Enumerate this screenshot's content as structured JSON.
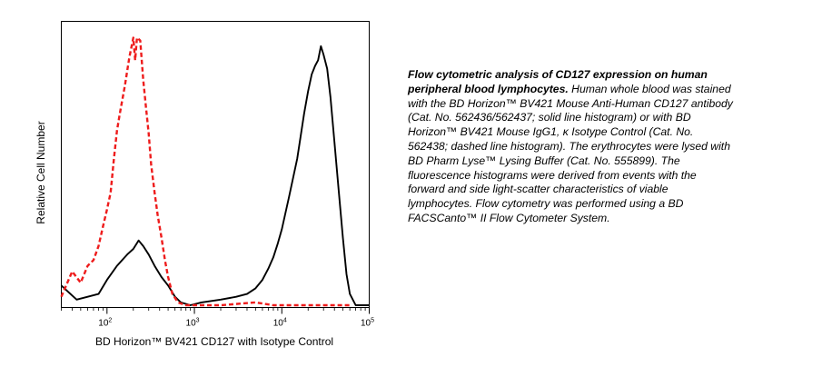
{
  "chart_data": {
    "type": "line",
    "xscale": "log",
    "xlim": [
      30,
      100000
    ],
    "ylim": [
      0,
      1.0
    ],
    "xlabel": "BD Horizon™ BV421 CD127 with Isotype Control",
    "ylabel": "Relative Cell Number",
    "xticks": [
      {
        "value": 100,
        "base": "10",
        "exp": "2"
      },
      {
        "value": 1000,
        "base": "10",
        "exp": "3"
      },
      {
        "value": 10000,
        "base": "10",
        "exp": "4"
      },
      {
        "value": 100000,
        "base": "10",
        "exp": "5"
      }
    ],
    "grid": false,
    "series": [
      {
        "style": "solid",
        "color": "#000000",
        "x": [
          30,
          45,
          60,
          80,
          100,
          130,
          170,
          200,
          230,
          260,
          300,
          350,
          420,
          500,
          600,
          700,
          900,
          1200,
          2000,
          3000,
          4000,
          5000,
          6000,
          7000,
          8000,
          9000,
          10000,
          12000,
          15000,
          18000,
          20000,
          22000,
          24000,
          26000,
          28000,
          30000,
          33000,
          36000,
          40000,
          45000,
          50000,
          55000,
          60000,
          70000,
          90000,
          100000
        ],
        "y": [
          0.07,
          0.02,
          0.03,
          0.04,
          0.09,
          0.14,
          0.18,
          0.2,
          0.23,
          0.21,
          0.18,
          0.14,
          0.1,
          0.07,
          0.03,
          0.01,
          0.0,
          0.01,
          0.02,
          0.03,
          0.04,
          0.06,
          0.09,
          0.13,
          0.17,
          0.22,
          0.27,
          0.38,
          0.52,
          0.68,
          0.76,
          0.82,
          0.85,
          0.87,
          0.92,
          0.89,
          0.84,
          0.74,
          0.58,
          0.4,
          0.24,
          0.11,
          0.04,
          0.0,
          0.0,
          0.0
        ]
      },
      {
        "style": "dashed",
        "color": "#ee1c1c",
        "x": [
          30,
          40,
          50,
          60,
          70,
          80,
          90,
          100,
          110,
          120,
          130,
          140,
          160,
          180,
          200,
          210,
          220,
          240,
          260,
          280,
          300,
          320,
          350,
          380,
          420,
          460,
          500,
          560,
          650,
          800,
          1000,
          2000,
          5000,
          8000,
          20000,
          30000,
          60000
        ],
        "y": [
          0.03,
          0.12,
          0.08,
          0.14,
          0.16,
          0.21,
          0.28,
          0.34,
          0.4,
          0.52,
          0.62,
          0.68,
          0.78,
          0.88,
          0.95,
          0.87,
          0.95,
          0.94,
          0.8,
          0.7,
          0.61,
          0.5,
          0.4,
          0.32,
          0.24,
          0.16,
          0.1,
          0.04,
          0.01,
          0.0,
          0.0,
          0.0,
          0.01,
          0.0,
          0.0,
          0.0,
          0.0
        ]
      }
    ]
  },
  "caption": {
    "title": "Flow cytometric analysis of CD127 expression on human peripheral blood lymphocytes",
    "body": "Human whole blood was stained with the BD  Horizon™ BV421 Mouse Anti-Human CD127 antibody (Cat. No. 562436/562437; solid line histogram) or with BD  Horizon™ BV421 Mouse IgG1, κ Isotype Control (Cat. No. 562438; dashed line histogram). The erythrocytes were lysed with BD Pharm Lyse™ Lysing Buffer (Cat. No. 555899). The fluorescence histograms were derived from events with the forward and side light-scatter characteristics of viable lymphocytes. Flow cytometry was performed using a BD FACSCanto™ II Flow Cytometer System."
  }
}
